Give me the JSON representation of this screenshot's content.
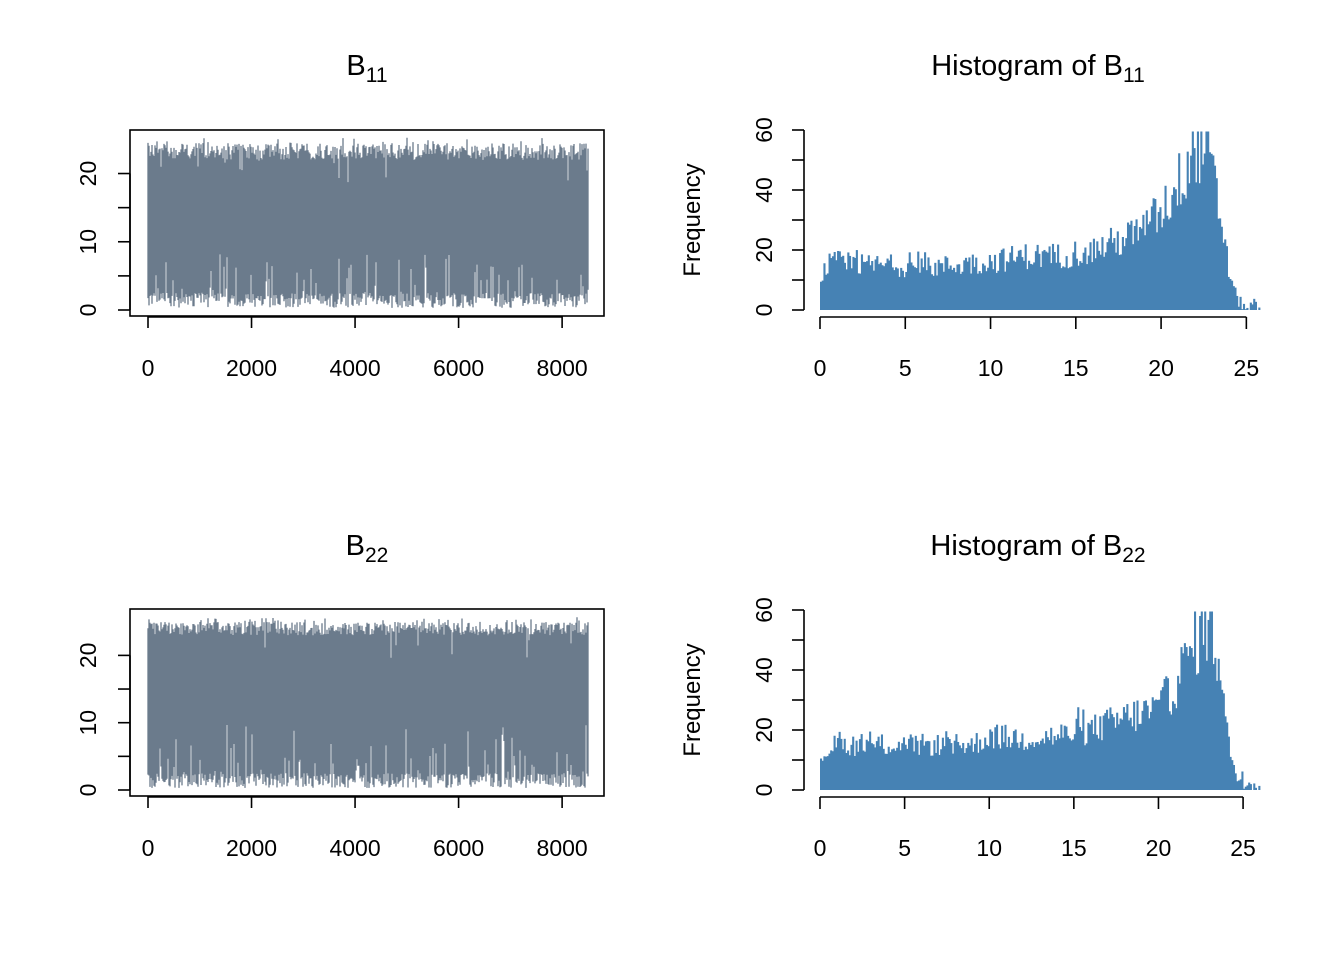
{
  "colors": {
    "trace": "#6b7b8c",
    "histogram": "#4682b4",
    "axis": "#000000"
  },
  "chart_data": [
    {
      "id": "trace-b11",
      "type": "line",
      "title": {
        "main": "B",
        "sub": "11"
      },
      "xlabel": "",
      "ylabel": "",
      "xlim": [
        0,
        8500
      ],
      "ylim": [
        0,
        25.5
      ],
      "x_ticks": [
        0,
        2000,
        4000,
        6000,
        8000
      ],
      "y_ticks": [
        0,
        10,
        20
      ],
      "n_iterations": 8500,
      "band": {
        "lower_typical": [
          0.3,
          2.5
        ],
        "upper_typical": [
          22,
          24.5
        ],
        "lower_spikes_max": 8.8,
        "upper_spikes_max": 25.3
      }
    },
    {
      "id": "hist-b11",
      "type": "bar",
      "title": {
        "main": "Histogram of B",
        "sub": "11"
      },
      "xlabel": "",
      "ylabel": "Frequency",
      "xlim": [
        0,
        25.8
      ],
      "ylim": [
        0,
        60
      ],
      "x_ticks": [
        0,
        5,
        10,
        15,
        20,
        25
      ],
      "y_ticks": [
        0,
        20,
        40,
        60
      ],
      "bin_width": 0.1,
      "profile": [
        [
          0,
          11
        ],
        [
          0.5,
          15
        ],
        [
          1,
          16
        ],
        [
          2,
          15
        ],
        [
          4,
          15
        ],
        [
          6,
          14
        ],
        [
          8,
          15
        ],
        [
          10,
          16
        ],
        [
          12,
          18
        ],
        [
          14,
          18
        ],
        [
          16,
          20
        ],
        [
          18,
          24
        ],
        [
          19,
          27
        ],
        [
          20,
          33
        ],
        [
          21,
          42
        ],
        [
          22,
          55
        ],
        [
          22.6,
          55
        ],
        [
          23,
          45
        ],
        [
          23.5,
          30
        ],
        [
          24,
          12
        ],
        [
          24.5,
          3
        ],
        [
          25,
          1
        ],
        [
          25.8,
          1
        ]
      ]
    },
    {
      "id": "trace-b22",
      "type": "line",
      "title": {
        "main": "B",
        "sub": "22"
      },
      "xlabel": "",
      "ylabel": "",
      "xlim": [
        0,
        8500
      ],
      "ylim": [
        0,
        26
      ],
      "x_ticks": [
        0,
        2000,
        4000,
        6000,
        8000
      ],
      "y_ticks": [
        0,
        10,
        20
      ],
      "n_iterations": 8500,
      "band": {
        "lower_typical": [
          0.3,
          2.5
        ],
        "upper_typical": [
          23,
          25
        ],
        "lower_spikes_max": 9.8,
        "upper_spikes_max": 25.8
      }
    },
    {
      "id": "hist-b22",
      "type": "bar",
      "title": {
        "main": "Histogram of B",
        "sub": "22"
      },
      "xlabel": "",
      "ylabel": "Frequency",
      "xlim": [
        0,
        26
      ],
      "ylim": [
        0,
        60
      ],
      "x_ticks": [
        0,
        5,
        10,
        15,
        20,
        25
      ],
      "y_ticks": [
        0,
        20,
        40,
        60
      ],
      "bin_width": 0.1,
      "profile": [
        [
          0,
          10
        ],
        [
          0.5,
          14
        ],
        [
          1,
          15
        ],
        [
          3,
          15
        ],
        [
          6,
          15
        ],
        [
          9,
          15
        ],
        [
          10,
          18
        ],
        [
          12,
          17
        ],
        [
          14,
          18
        ],
        [
          16,
          20
        ],
        [
          18,
          24
        ],
        [
          20,
          27
        ],
        [
          21,
          35
        ],
        [
          22,
          48
        ],
        [
          23,
          56
        ],
        [
          23.5,
          45
        ],
        [
          24,
          20
        ],
        [
          24.5,
          6
        ],
        [
          25,
          2
        ],
        [
          26,
          1
        ]
      ]
    }
  ]
}
